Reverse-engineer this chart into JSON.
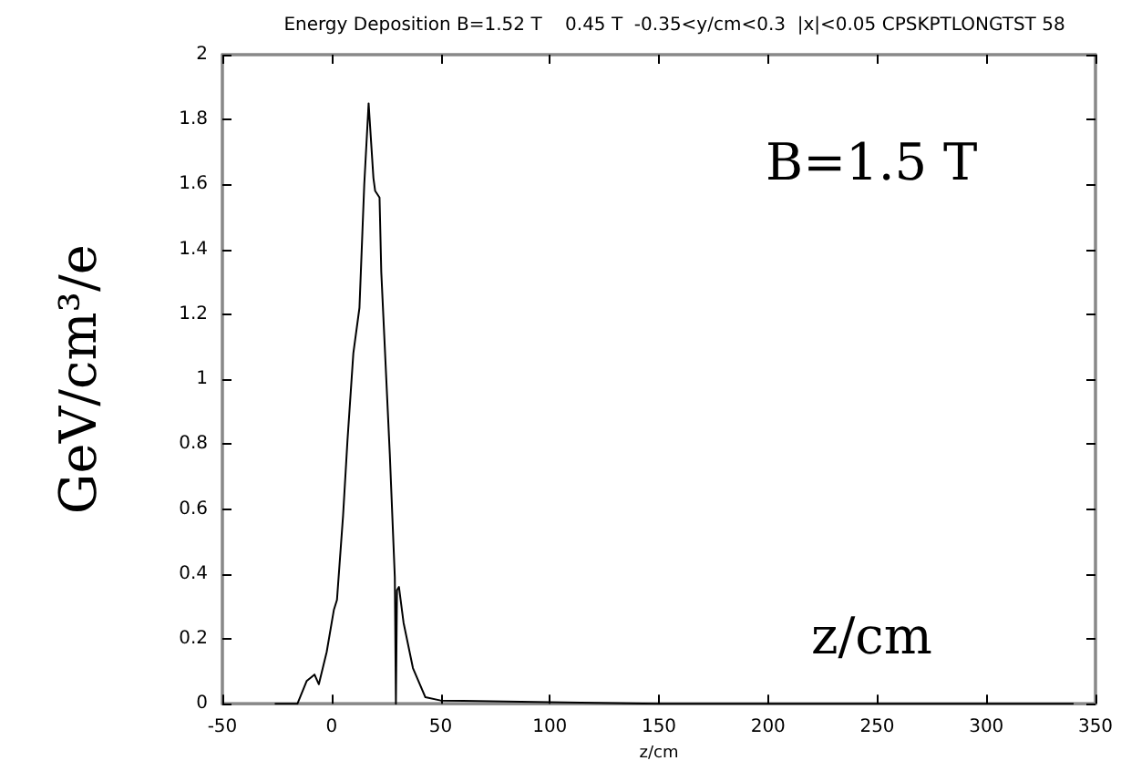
{
  "chart_data": {
    "type": "line",
    "title": "Energy Deposition B=1.52 T    0.45 T  -0.35<y/cm<0.3  |x|<0.05 CPSKPTLONGTST 58",
    "xlabel": "z/cm",
    "ylabel": "GeV/cm³/e",
    "annotations": [
      "B=1.5 T",
      "z/cm"
    ],
    "series": [
      {
        "color": "#000000",
        "x": [
          -26,
          -15.6,
          -11.4,
          -7.8,
          -5.8,
          -2.2,
          1.1,
          2.5,
          5.3,
          7.3,
          10,
          12.8,
          15,
          17,
          19.2,
          20,
          22,
          22.8,
          26.7,
          29,
          29.5,
          30,
          30.9,
          33,
          37.3,
          43,
          50,
          100,
          150,
          340
        ],
        "values": [
          0,
          0,
          0.07,
          0.09,
          0.06,
          0.16,
          0.29,
          0.32,
          0.58,
          0.81,
          1.08,
          1.22,
          1.6,
          1.85,
          1.62,
          1.58,
          1.56,
          1.33,
          0.77,
          0.39,
          0,
          0.35,
          0.36,
          0.25,
          0.11,
          0.02,
          0.01,
          0.005,
          0,
          0
        ]
      }
    ],
    "xlim": [
      -50,
      350
    ],
    "xticks": [
      -50,
      0,
      50,
      100,
      150,
      200,
      250,
      300,
      350
    ],
    "ylim": [
      0,
      2
    ],
    "yticks": [
      0,
      0.2,
      0.4,
      0.6,
      0.8,
      1,
      1.2,
      1.4,
      1.6,
      1.8,
      2
    ],
    "grid": false,
    "marker": "none",
    "line_style": "solid"
  }
}
